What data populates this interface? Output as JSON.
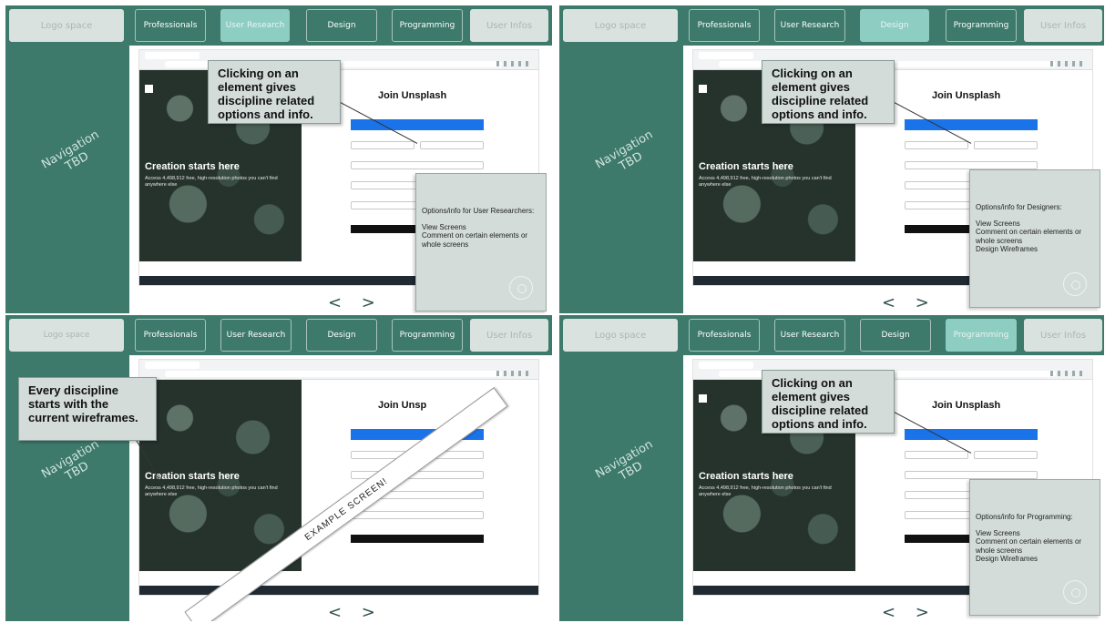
{
  "nav": {
    "logo": "Logo space",
    "professionals": "Professionals",
    "user_research": "User Research",
    "design": "Design",
    "programming": "Programming",
    "user_infos": "User Infos"
  },
  "sidebar": {
    "line1": "Navigation",
    "line2": "TBD"
  },
  "screen": {
    "hero_title": "Creation starts here",
    "hero_sub": "Access 4,498,912 free, high-resolution photos you can't find anywhere else",
    "join_title": "Join Unsplash",
    "join_title_cut": "Join Unsp"
  },
  "callout_clicking": "Clicking on an element gives discipline related options and info.",
  "callout_every": "Every discipline starts with the current wireframes.",
  "banner_text": "EXAMPLE SCREEN!",
  "pager": "< >",
  "info": {
    "ur_title": "Options/info for User Researchers:",
    "des_title": "Options/info for Designers:",
    "prog_title": "Options/info for Programming:",
    "view": "View Screens",
    "comment": "Comment on certain elements or whole screens",
    "wire": "Design Wireframes"
  },
  "colors": {
    "panel": "#3d7a6b",
    "active_tab": "#8ecdc2",
    "callout": "#d3dcd9"
  }
}
